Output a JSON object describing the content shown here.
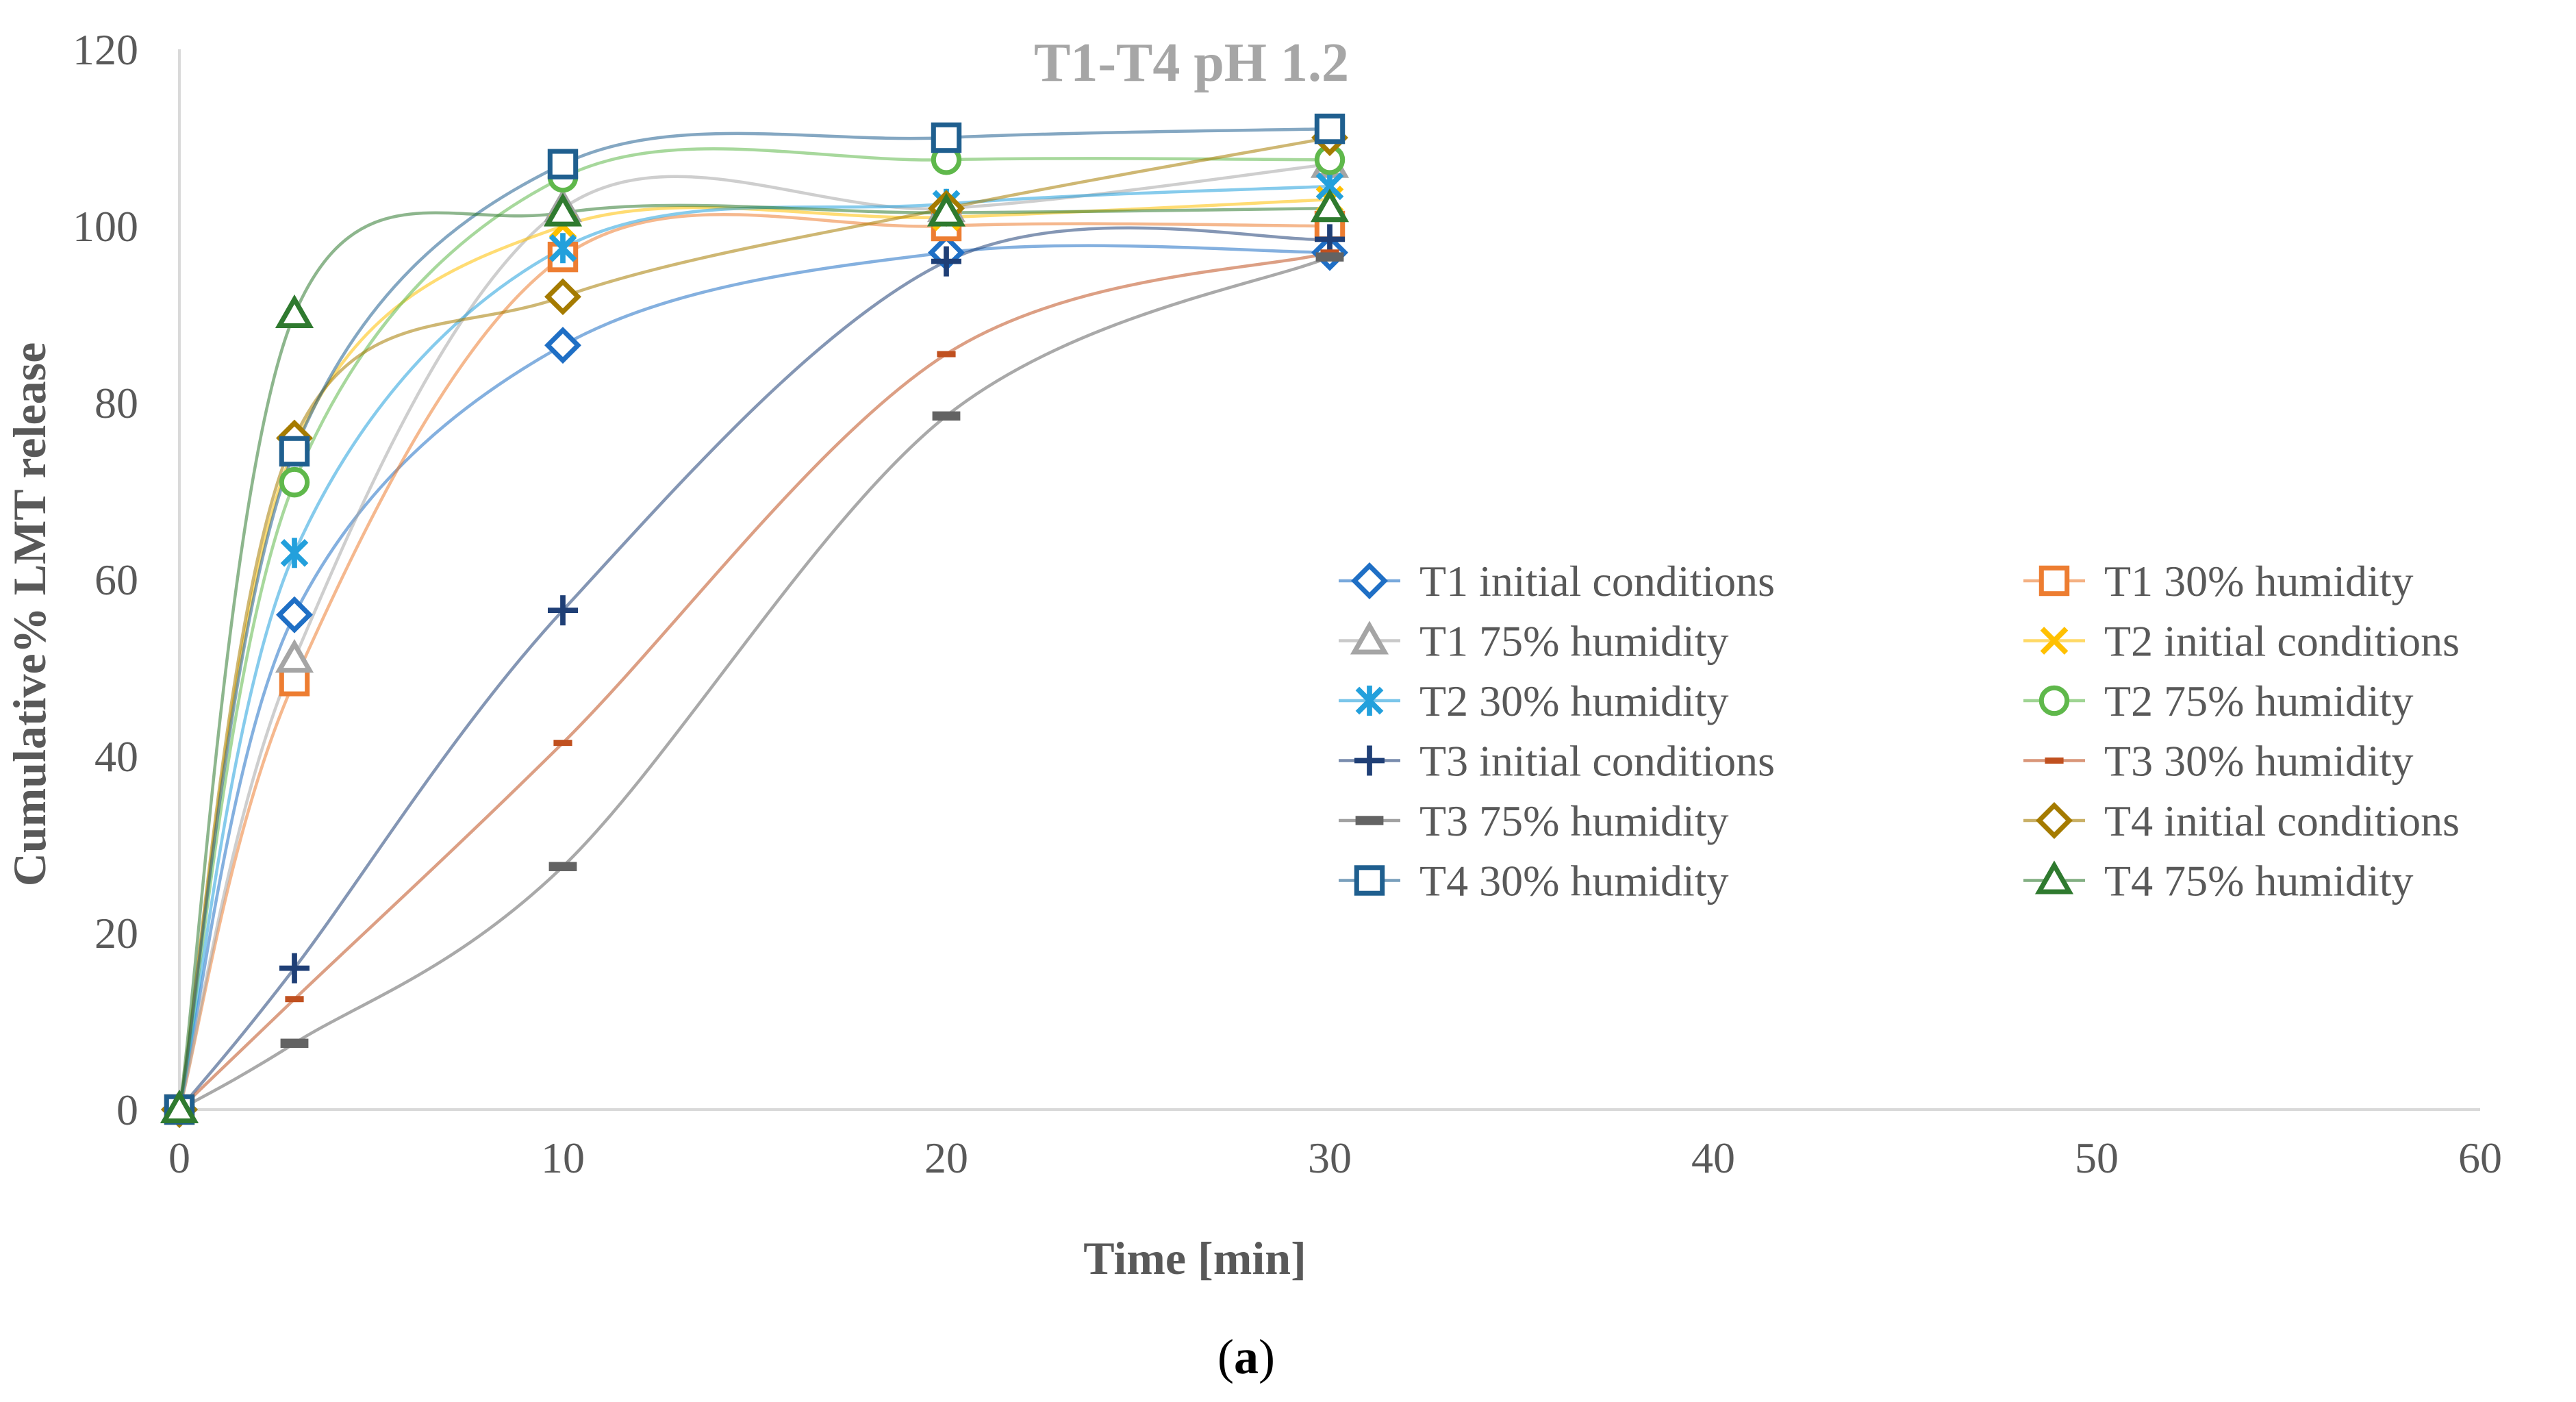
{
  "chart_data": {
    "type": "line",
    "title": "T1-T4  pH 1.2",
    "xlabel": "Time [min]",
    "ylabel": "Cumulative% LMT release",
    "caption": "(a)",
    "caption_parts": {
      "open": "(",
      "letter": "a",
      "close": ")"
    },
    "xlim": [
      0,
      60
    ],
    "ylim": [
      0,
      120
    ],
    "x_ticks": [
      0,
      10,
      20,
      30,
      40,
      50,
      60
    ],
    "y_ticks": [
      0,
      20,
      40,
      60,
      80,
      100,
      120
    ],
    "x": [
      0,
      3,
      10,
      20,
      30
    ],
    "grid": false,
    "legend_position": "right",
    "series": [
      {
        "name": "T1 initial conditions",
        "values": [
          0,
          56,
          86.5,
          97,
          97
        ],
        "color": "#1f6fc5",
        "marker": "diamond"
      },
      {
        "name": "T1 30% humidity",
        "values": [
          0,
          48.5,
          96.5,
          100,
          100
        ],
        "color": "#ed7d31",
        "marker": "square"
      },
      {
        "name": "T1 75% humidity",
        "values": [
          0,
          51,
          102,
          102,
          107
        ],
        "color": "#a5a5a5",
        "marker": "triangle"
      },
      {
        "name": "T2 initial conditions",
        "values": [
          0,
          75,
          100,
          101,
          103
        ],
        "color": "#ffc000",
        "marker": "x"
      },
      {
        "name": "T2 30% humidity",
        "values": [
          0,
          63,
          97.5,
          102.5,
          104.5
        ],
        "color": "#23a0dc",
        "marker": "asterisk"
      },
      {
        "name": "T2 75% humidity",
        "values": [
          0,
          71,
          105.5,
          107.5,
          107.5
        ],
        "color": "#5fb84b",
        "marker": "circle"
      },
      {
        "name": "T3 initial conditions",
        "values": [
          0,
          16,
          56.5,
          96,
          98.5
        ],
        "color": "#1f3f76",
        "marker": "plus"
      },
      {
        "name": "T3 30% humidity",
        "values": [
          0,
          12.5,
          41.5,
          85.5,
          97
        ],
        "color": "#c0501f",
        "marker": "dash"
      },
      {
        "name": "T3 75% humidity",
        "values": [
          0,
          7.5,
          27.5,
          78.5,
          96.5
        ],
        "color": "#636363",
        "marker": "dash"
      },
      {
        "name": "T4 initial conditions",
        "values": [
          0,
          76,
          92,
          102,
          110
        ],
        "color": "#a57b00",
        "marker": "diamond"
      },
      {
        "name": "T4 30% humidity",
        "values": [
          0,
          74.5,
          107,
          110,
          111
        ],
        "color": "#1f5f8f",
        "marker": "square"
      },
      {
        "name": "T4 75% humidity",
        "values": [
          0,
          90,
          101.5,
          101.5,
          102
        ],
        "color": "#2f7a2f",
        "marker": "triangle"
      }
    ]
  }
}
